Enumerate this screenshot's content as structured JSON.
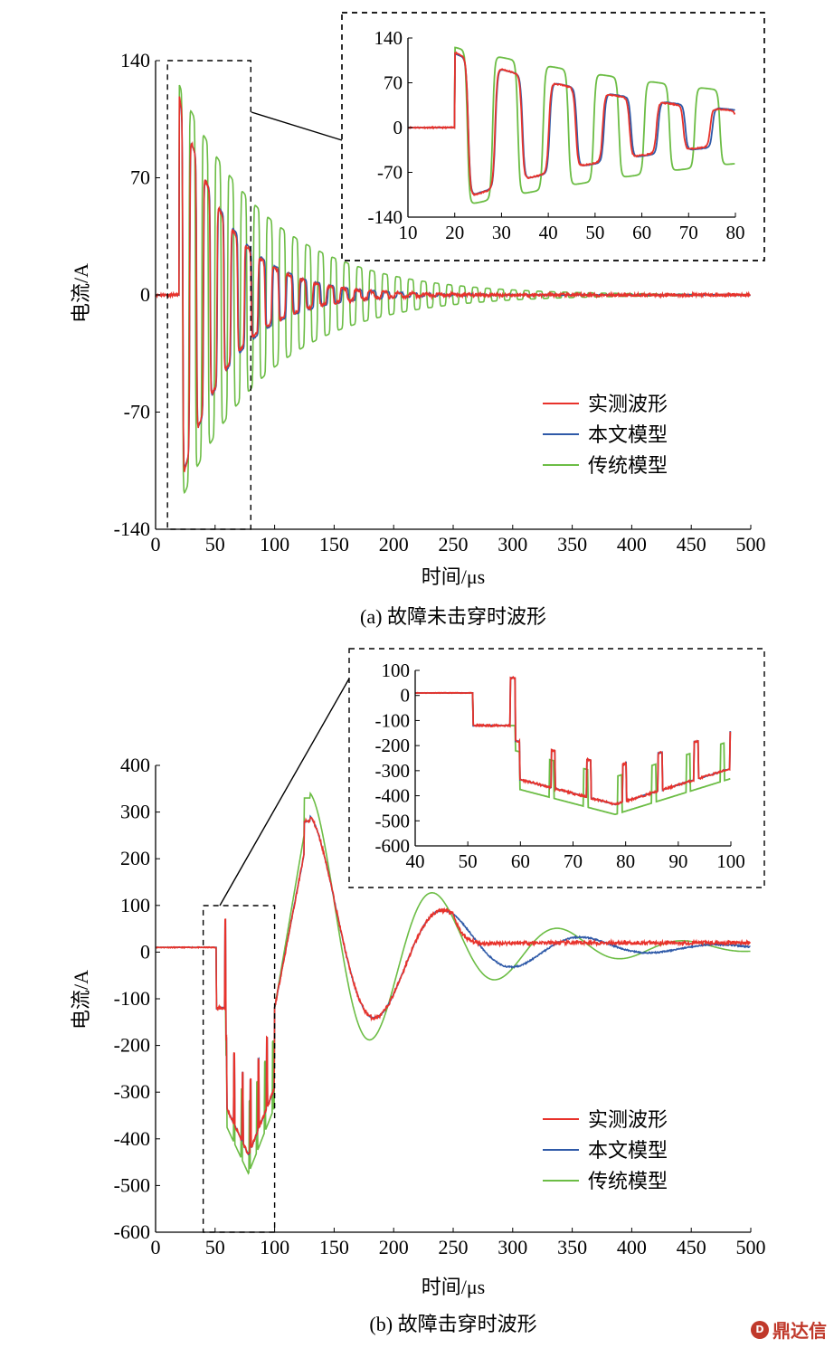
{
  "colors": {
    "measured": "#e8322b",
    "proposed": "#2f5aa8",
    "traditional": "#6cbd45"
  },
  "legend": {
    "measured": "实测波形",
    "proposed": "本文模型",
    "traditional": "传统模型"
  },
  "watermark": {
    "text": "鼎达信"
  },
  "chart_data": [
    {
      "type": "line",
      "caption": "(a) 故障未击穿时波形",
      "xlabel": "时间/μs",
      "ylabel": "电流/A",
      "xlim": [
        0,
        500
      ],
      "ylim": [
        -140,
        140
      ],
      "xticks": [
        0,
        50,
        100,
        150,
        200,
        250,
        300,
        350,
        400,
        450,
        500
      ],
      "yticks": [
        -140,
        -70,
        0,
        70,
        140
      ],
      "legend_position": "lower-right",
      "series": [
        {
          "name": "实测波形",
          "key": "measured",
          "model": {
            "type": "osc",
            "t0": 20,
            "pre": 0,
            "amp": 120,
            "period": 11.5,
            "tau": 40,
            "fall": 0.25,
            "noise": 2
          }
        },
        {
          "name": "本文模型",
          "key": "proposed",
          "model": {
            "type": "osc",
            "t0": 20,
            "pre": 0,
            "amp": 118,
            "period": 11.6,
            "tau": 42,
            "fall": 0.25,
            "noise": 0.6
          }
        },
        {
          "name": "传统模型",
          "key": "traditional",
          "model": {
            "type": "osc",
            "t0": 20,
            "pre": 0,
            "amp": 128,
            "period": 10.8,
            "tau": 75,
            "fall": 0.3,
            "noise": 0
          }
        }
      ],
      "highlight_x": [
        10,
        80
      ],
      "inset": {
        "xlim": [
          10,
          80
        ],
        "ylim": [
          -140,
          140
        ],
        "xticks": [
          10,
          20,
          30,
          40,
          50,
          60,
          70,
          80
        ],
        "yticks": [
          -140,
          -70,
          0,
          70,
          140
        ]
      }
    },
    {
      "type": "line",
      "caption": "(b) 故障击穿时波形",
      "xlabel": "时间/μs",
      "ylabel": "电流/A",
      "xlim": [
        0,
        500
      ],
      "ylim": [
        -600,
        400
      ],
      "xticks": [
        0,
        50,
        100,
        150,
        200,
        250,
        300,
        350,
        400,
        450,
        500
      ],
      "yticks": [
        -600,
        -500,
        -400,
        -300,
        -200,
        -100,
        0,
        100,
        200,
        300,
        400
      ],
      "legend_position": "lower-right",
      "series": [
        {
          "name": "实测波形",
          "key": "measured",
          "model": {
            "type": "breakdown",
            "variant": "measured"
          }
        },
        {
          "name": "本文模型",
          "key": "proposed",
          "model": {
            "type": "breakdown",
            "variant": "proposed"
          }
        },
        {
          "name": "传统模型",
          "key": "traditional",
          "model": {
            "type": "breakdown",
            "variant": "traditional"
          }
        }
      ],
      "highlight_x": [
        40,
        100
      ],
      "inset": {
        "xlim": [
          40,
          100
        ],
        "ylim": [
          -600,
          100
        ],
        "xticks": [
          40,
          50,
          60,
          70,
          80,
          90,
          100
        ],
        "yticks": [
          -600,
          -500,
          -400,
          -300,
          -200,
          -100,
          0,
          100
        ]
      }
    }
  ]
}
